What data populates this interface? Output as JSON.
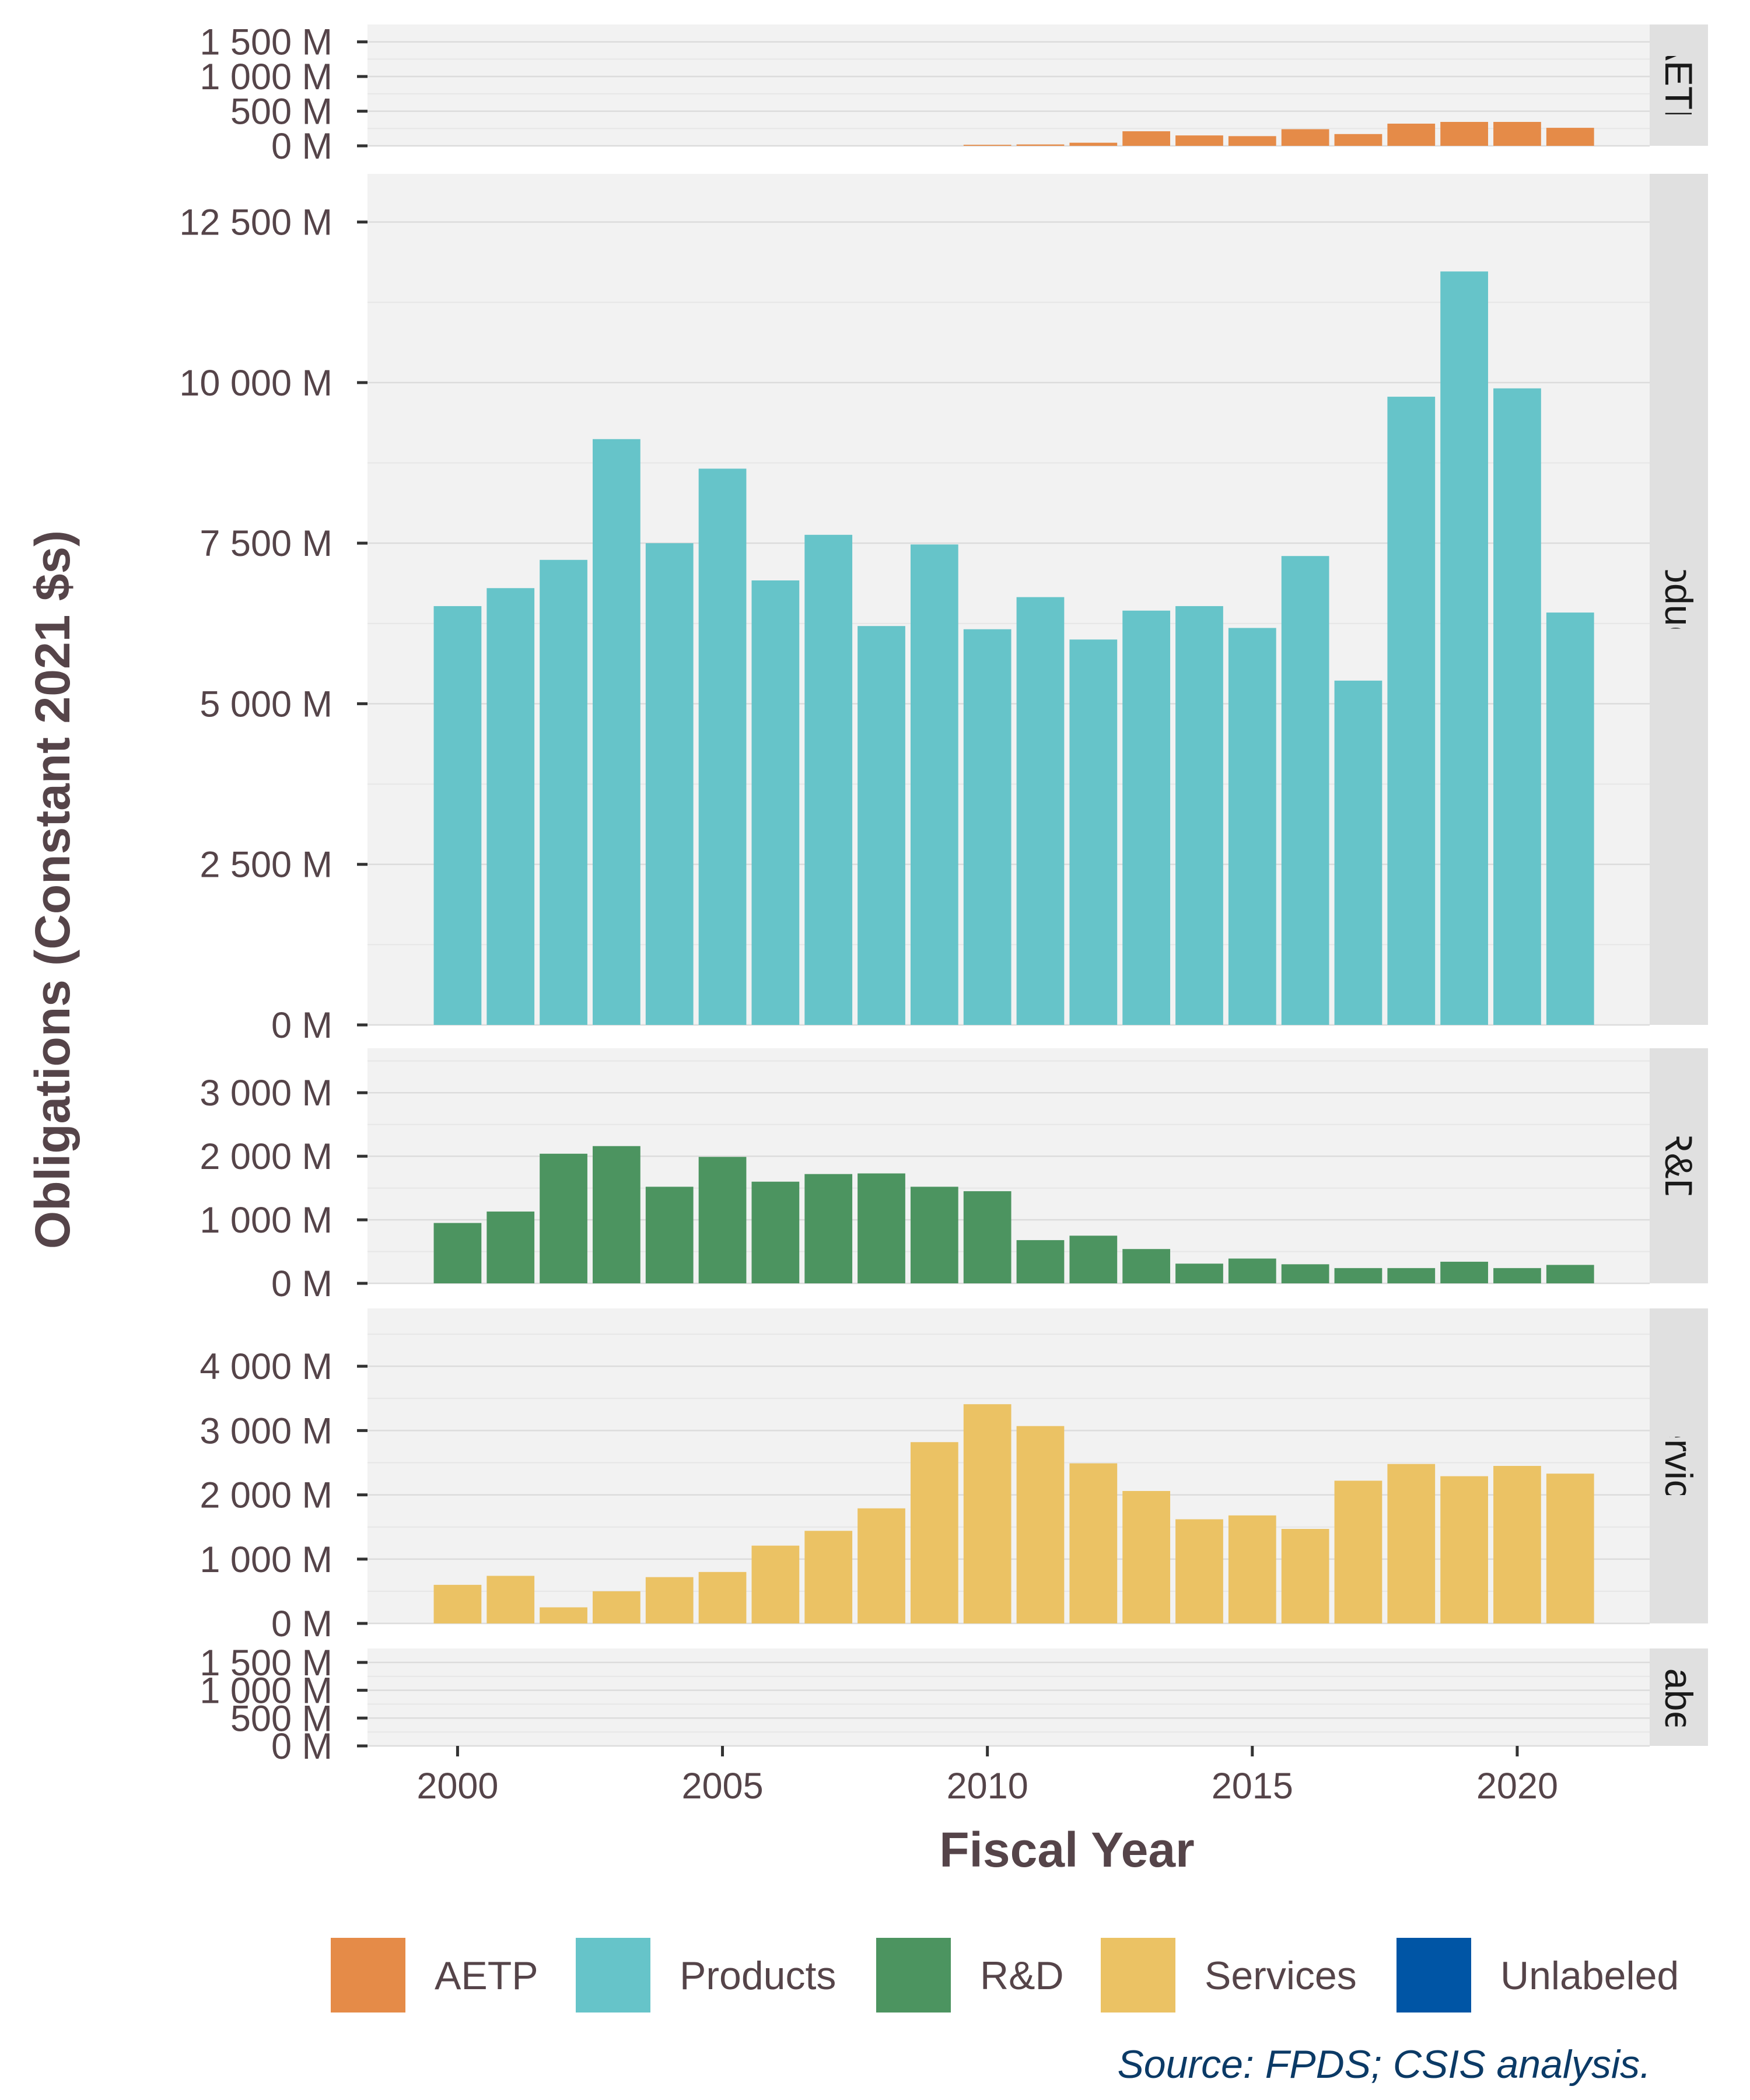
{
  "chart_data": {
    "type": "bar",
    "xlabel": "Fiscal Year",
    "ylabel": "Obligations (Constant 2021 $s)",
    "x": [
      2000,
      2001,
      2002,
      2003,
      2004,
      2005,
      2006,
      2007,
      2008,
      2009,
      2010,
      2011,
      2012,
      2013,
      2014,
      2015,
      2016,
      2017,
      2018,
      2019,
      2020,
      2021
    ],
    "x_ticks": [
      "2000",
      "2005",
      "2010",
      "2015",
      "2020"
    ],
    "x_tick_values": [
      2000,
      2005,
      2010,
      2015,
      2020
    ],
    "xlim": [
      1998.3,
      2022.5
    ],
    "unit_suffix": " M",
    "grid": true,
    "legend_position": "bottom",
    "facets": [
      {
        "label": "AETP",
        "color": "#E58B48",
        "ylim": [
          0,
          1750
        ],
        "y_ticks": [
          "0 M",
          "500 M",
          "1 000 M",
          "1 500 M"
        ],
        "y_tick_values": [
          0,
          500,
          1000,
          1500
        ],
        "values": [
          0,
          0,
          0,
          0,
          0,
          0,
          0,
          0,
          0,
          0,
          15,
          20,
          45,
          210,
          150,
          140,
          240,
          170,
          320,
          345,
          345,
          260
        ]
      },
      {
        "label": "Products",
        "color": "#66C4C9",
        "ylim": [
          0,
          13250
        ],
        "y_ticks": [
          "0 M",
          "2 500 M",
          "5 000 M",
          "7 500 M",
          "10 000 M",
          "12 500 M"
        ],
        "y_tick_values": [
          0,
          2500,
          5000,
          7500,
          10000,
          12500
        ],
        "values": [
          6520,
          6800,
          7240,
          9120,
          7500,
          8660,
          6920,
          7630,
          6210,
          7480,
          6160,
          6660,
          6000,
          6450,
          6520,
          6180,
          7300,
          5360,
          9780,
          11730,
          9910,
          6420
        ]
      },
      {
        "label": "R&D",
        "color": "#4C9460",
        "ylim": [
          0,
          3700
        ],
        "y_ticks": [
          "0 M",
          "1 000 M",
          "2 000 M",
          "3 000 M"
        ],
        "y_tick_values": [
          0,
          1000,
          2000,
          3000
        ],
        "values": [
          950,
          1130,
          2040,
          2160,
          1520,
          1990,
          1600,
          1720,
          1730,
          1520,
          1450,
          680,
          750,
          540,
          310,
          390,
          300,
          240,
          240,
          340,
          240,
          290
        ]
      },
      {
        "label": "Services",
        "color": "#EBC264",
        "ylim": [
          0,
          4900
        ],
        "y_ticks": [
          "0 M",
          "1 000 M",
          "2 000 M",
          "3 000 M",
          "4 000 M"
        ],
        "y_tick_values": [
          0,
          1000,
          2000,
          3000,
          4000
        ],
        "values": [
          600,
          740,
          250,
          500,
          720,
          800,
          1210,
          1440,
          1790,
          2820,
          3410,
          3070,
          2490,
          2060,
          1620,
          1680,
          1470,
          2220,
          2480,
          2290,
          2450,
          2330
        ]
      },
      {
        "label": "Unlabeled",
        "color": "#0055A5",
        "ylim": [
          0,
          1750
        ],
        "y_ticks": [
          "0 M",
          "500 M",
          "1 000 M",
          "1 500 M"
        ],
        "y_tick_values": [
          0,
          500,
          1000,
          1500
        ],
        "values": [
          0,
          0,
          0,
          0,
          0,
          0,
          0,
          0,
          0,
          0,
          0,
          0,
          0,
          0,
          0,
          0,
          0,
          0,
          0,
          0,
          0,
          0
        ]
      }
    ],
    "legend": [
      {
        "label": "AETP",
        "color": "#E58B48"
      },
      {
        "label": "Products",
        "color": "#66C4C9"
      },
      {
        "label": "R&D",
        "color": "#4C9460"
      },
      {
        "label": "Services",
        "color": "#EBC264"
      },
      {
        "label": "Unlabeled",
        "color": "#0055A5"
      }
    ]
  },
  "caption": "Source: FPDS; CSIS analysis."
}
